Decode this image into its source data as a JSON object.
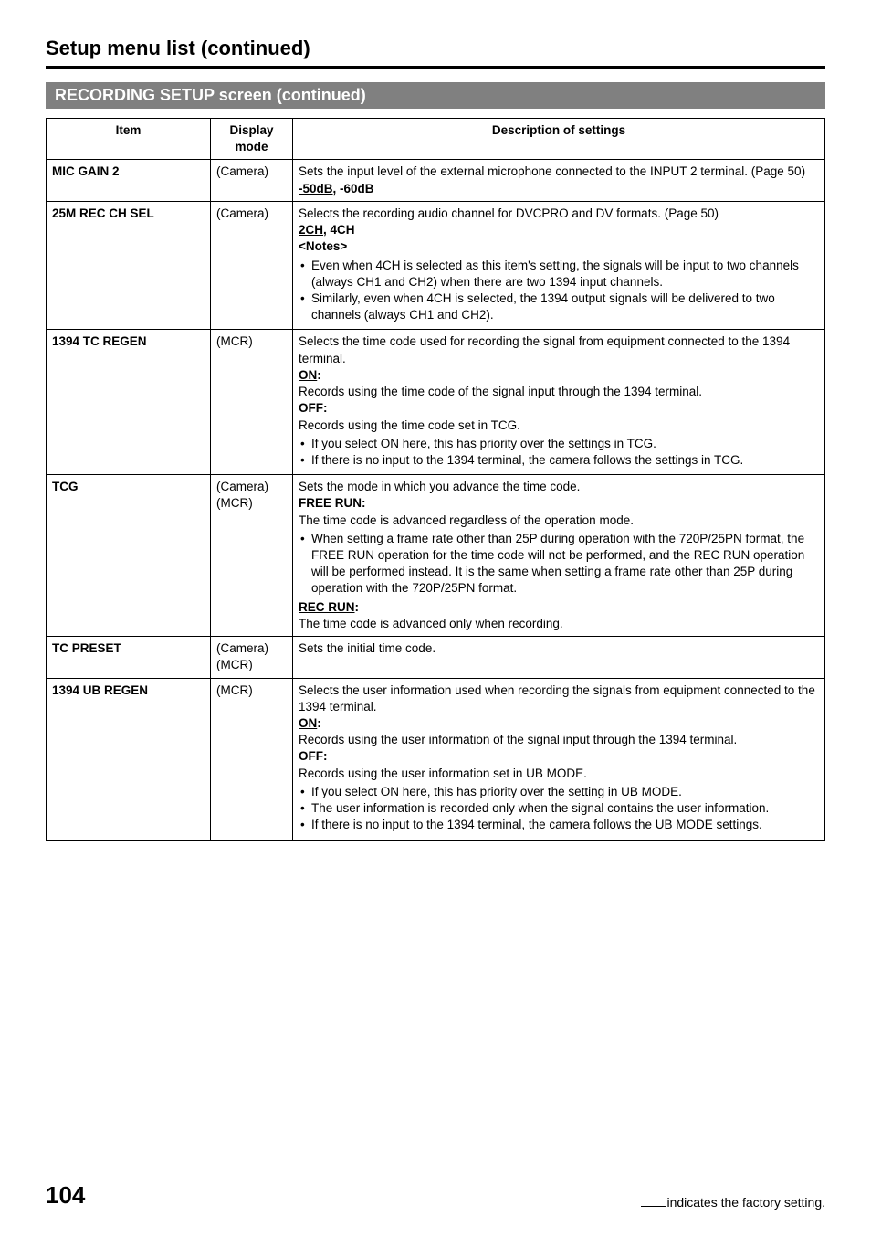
{
  "page": {
    "title": "Setup menu list (continued)",
    "section_bar": "RECORDING SETUP screen (continued)",
    "page_number": "104",
    "footer_note_suffix": "indicates the factory setting."
  },
  "table": {
    "headers": {
      "item": "Item",
      "mode": "Display mode",
      "desc": "Description of settings"
    },
    "rows": [
      {
        "item": "MIC GAIN 2",
        "mode": "(Camera)",
        "desc_intro": "Sets the input level of the external microphone connected to the INPUT 2 terminal. (Page 50)",
        "opt_underline": "-50dB",
        "opt_rest": ", -60dB"
      },
      {
        "item": "25M REC CH SEL",
        "mode": "(Camera)",
        "desc_intro": "Selects the recording audio channel for DVCPRO and DV formats. (Page 50)",
        "opt_underline": "2CH",
        "opt_rest": ", 4CH",
        "notes_label": "<Notes>",
        "bullets": [
          "Even when 4CH is selected as this item's setting, the signals will be input to two channels (always CH1 and CH2) when there are two 1394 input channels.",
          "Similarly, even when 4CH is selected, the 1394 output signals will be delivered to two channels (always CH1 and CH2)."
        ]
      },
      {
        "item": "1394 TC REGEN",
        "mode": "(MCR)",
        "desc_intro": "Selects the time code used for recording the signal from equipment connected to the 1394 terminal.",
        "on_label": "ON",
        "on_text": "Records using the time code of the signal input through the 1394 terminal.",
        "off_label": "OFF:",
        "off_text": "Records using the time code set in TCG.",
        "bullets": [
          "If you select ON here, this has priority over the settings in TCG.",
          "If there is no input to the 1394 terminal, the camera follows the settings in TCG."
        ]
      },
      {
        "item": "TCG",
        "mode1": "(Camera)",
        "mode2": "(MCR)",
        "desc_intro": "Sets the mode in which you advance the time code.",
        "free_run_label": "FREE RUN:",
        "free_run_text": "The time code is advanced regardless of the operation mode.",
        "bullets": [
          "When setting a frame rate other than 25P during operation with the 720P/25PN format, the FREE RUN operation for the time code will not be performed, and the REC RUN operation will be performed instead. It is the same when setting a frame rate other than 25P during operation with the 720P/25PN format."
        ],
        "rec_run_label": "REC RUN",
        "rec_run_text": "The time code is advanced only when recording."
      },
      {
        "item": "TC PRESET",
        "mode1": "(Camera)",
        "mode2": "(MCR)",
        "desc_intro": "Sets the initial time code."
      },
      {
        "item": "1394 UB REGEN",
        "mode": "(MCR)",
        "desc_intro": "Selects the user information used when recording the signals from equipment connected to the 1394 terminal.",
        "on_label": "ON",
        "on_text": "Records using the user information of the signal input through the 1394 terminal.",
        "off_label": "OFF:",
        "off_text": "Records using the user information set in UB MODE.",
        "bullets": [
          "If you select ON here, this has priority over the setting in UB MODE.",
          "The user information is recorded only when the signal contains the user information.",
          "If there is no input to the 1394 terminal, the camera follows the UB MODE settings."
        ]
      }
    ]
  }
}
